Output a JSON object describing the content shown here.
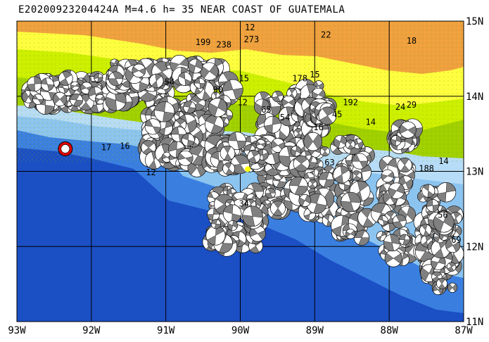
{
  "title": "E20200923204424A M=4.6 h= 35 NEAR COAST OF GUATEMALA",
  "map": {
    "lon_range": [
      -93,
      -87
    ],
    "lat_range": [
      11,
      15
    ],
    "x_ticks": [
      "93W",
      "92W",
      "91W",
      "90W",
      "89W",
      "88W",
      "87W"
    ],
    "y_ticks": [
      "15N",
      "14N",
      "13N",
      "12N",
      "11N"
    ],
    "colors": {
      "deep_ocean": "#1b4fc4",
      "mid_ocean": "#3a7fe0",
      "shelf": "#8cc4f0",
      "coast_shelf": "#b6dcf7",
      "lowland": "#a0d000",
      "hills": "#ccf000",
      "upland": "#ffff40",
      "highland": "#f0a040",
      "grid": "#000000",
      "beachball_dark": "#808080",
      "beachball_light": "#ffffff",
      "event_highlight": "#e00000",
      "station": "#ffff00"
    },
    "highlighted_event": {
      "lon": -92.35,
      "lat": 13.3
    },
    "depth_labels": [
      {
        "text": "12",
        "lon": -89.87,
        "lat": 14.88
      },
      {
        "text": "22",
        "lon": -88.85,
        "lat": 14.78
      },
      {
        "text": "18",
        "lon": -87.7,
        "lat": 14.7
      },
      {
        "text": "273",
        "lon": -89.85,
        "lat": 14.72
      },
      {
        "text": "199",
        "lon": -90.5,
        "lat": 14.68
      },
      {
        "text": "238",
        "lon": -90.22,
        "lat": 14.65
      },
      {
        "text": "15",
        "lon": -89.95,
        "lat": 14.2
      },
      {
        "text": "15",
        "lon": -89.0,
        "lat": 14.25
      },
      {
        "text": "178",
        "lon": -89.2,
        "lat": 14.2
      },
      {
        "text": "54",
        "lon": -90.95,
        "lat": 14.15
      },
      {
        "text": "90",
        "lon": -90.3,
        "lat": 14.05
      },
      {
        "text": "12",
        "lon": -89.97,
        "lat": 13.88
      },
      {
        "text": "65",
        "lon": -89.65,
        "lat": 13.78
      },
      {
        "text": "54",
        "lon": -89.4,
        "lat": 13.68
      },
      {
        "text": "192",
        "lon": -88.52,
        "lat": 13.88
      },
      {
        "text": "45",
        "lon": -88.7,
        "lat": 13.72
      },
      {
        "text": "16",
        "lon": -88.95,
        "lat": 13.55
      },
      {
        "text": "29",
        "lon": -87.7,
        "lat": 13.85
      },
      {
        "text": "24",
        "lon": -87.85,
        "lat": 13.82
      },
      {
        "text": "14",
        "lon": -88.25,
        "lat": 13.62
      },
      {
        "text": "17",
        "lon": -91.8,
        "lat": 13.28
      },
      {
        "text": "16",
        "lon": -91.55,
        "lat": 13.3
      },
      {
        "text": "12",
        "lon": -91.2,
        "lat": 12.95
      },
      {
        "text": "63",
        "lon": -88.8,
        "lat": 13.08
      },
      {
        "text": "188",
        "lon": -87.5,
        "lat": 13.0
      },
      {
        "text": "14",
        "lon": -87.27,
        "lat": 13.1
      },
      {
        "text": "34",
        "lon": -89.95,
        "lat": 12.53
      },
      {
        "text": "56",
        "lon": -87.28,
        "lat": 12.38
      },
      {
        "text": "69",
        "lon": -87.1,
        "lat": 12.05
      }
    ]
  }
}
